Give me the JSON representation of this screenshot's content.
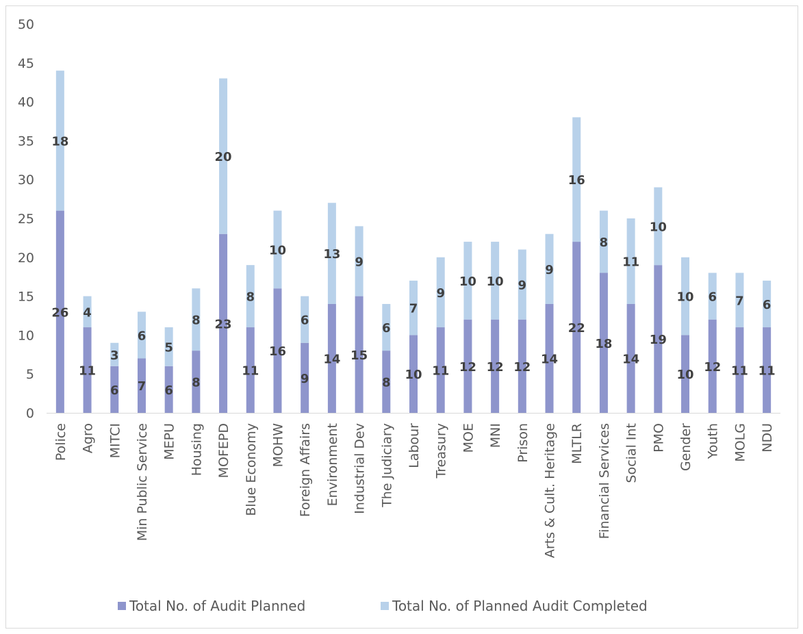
{
  "chart_data": {
    "type": "bar",
    "stacked": true,
    "title": "",
    "xlabel": "",
    "ylabel": "",
    "ylim": [
      0,
      50
    ],
    "yticks": [
      0,
      5,
      10,
      15,
      20,
      25,
      30,
      35,
      40,
      45,
      50
    ],
    "grid": false,
    "legend_position": "bottom",
    "categories": [
      "Police",
      "Agro",
      "MITCI",
      "Min Public Service",
      "MEPU",
      "Housing",
      "MOFEPD",
      "Blue Economy",
      "MOHW",
      "Foreign Affairs",
      "Environment",
      "Industrial Dev",
      "The Judiciary",
      "Labour",
      "Treasury",
      "MOE",
      "MNI",
      "Prison",
      "Arts & Cult. Heritage",
      "MLTLR",
      "Financial Services",
      "Social Int",
      "PMO",
      "Gender",
      "Youth",
      "MOLG",
      "NDU"
    ],
    "series": [
      {
        "name": "Total No. of Audit Planned",
        "color": "#8e95cc",
        "values": [
          26,
          11,
          6,
          7,
          6,
          8,
          23,
          11,
          16,
          9,
          14,
          15,
          8,
          10,
          11,
          12,
          12,
          12,
          14,
          22,
          18,
          14,
          19,
          10,
          12,
          11,
          11
        ]
      },
      {
        "name": "Total No. of Planned Audit Completed",
        "color": "#b8d1ea",
        "values": [
          18,
          4,
          3,
          6,
          5,
          8,
          20,
          8,
          10,
          6,
          13,
          9,
          6,
          7,
          9,
          10,
          10,
          9,
          9,
          16,
          8,
          11,
          10,
          10,
          6,
          7,
          6
        ]
      }
    ]
  }
}
